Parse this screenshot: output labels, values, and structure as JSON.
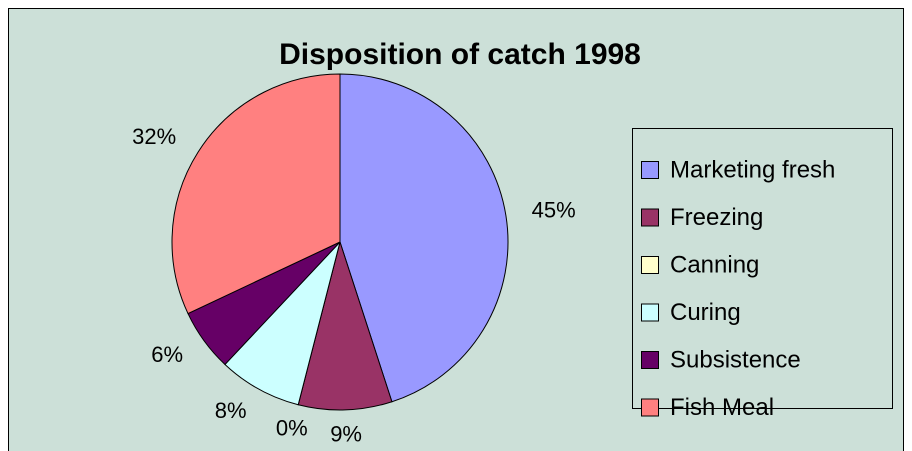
{
  "chart_data": {
    "type": "pie",
    "title": "Disposition of catch 1998",
    "categories": [
      "Marketing fresh",
      "Freezing",
      "Canning",
      "Curing",
      "Subsistence",
      "Fish Meal"
    ],
    "values": [
      45,
      9,
      0,
      8,
      6,
      32
    ],
    "value_labels": [
      "45%",
      "9%",
      "0%",
      "8%",
      "6%",
      "32%"
    ],
    "colors": [
      "#9999ff",
      "#993366",
      "#ffffcc",
      "#ccffff",
      "#660066",
      "#ff8080"
    ],
    "legend": "right"
  }
}
